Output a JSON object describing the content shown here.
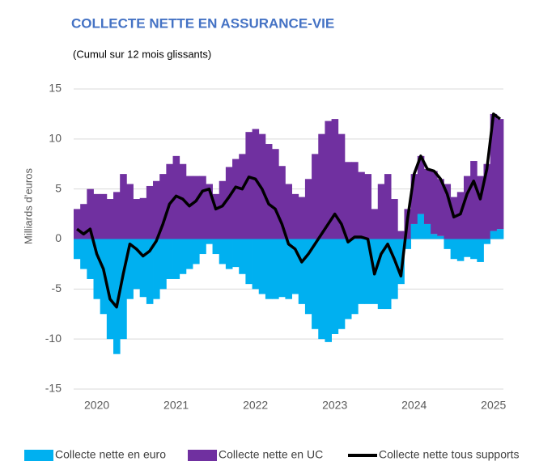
{
  "chart_data": {
    "type": "bar",
    "title": "COLLECTE NETTE EN ASSURANCE-VIE",
    "subtitle": "(Cumul sur 12 mois glissants)",
    "y_label": "Milliards d’euros",
    "categories": [
      null,
      null,
      null,
      "2020",
      null,
      null,
      null,
      null,
      null,
      null,
      null,
      null,
      null,
      null,
      null,
      "2021",
      null,
      null,
      null,
      null,
      null,
      null,
      null,
      null,
      null,
      null,
      null,
      "2022",
      null,
      null,
      null,
      null,
      null,
      null,
      null,
      null,
      null,
      null,
      null,
      "2023",
      null,
      null,
      null,
      null,
      null,
      null,
      null,
      null,
      null,
      null,
      null,
      "2024",
      null,
      null,
      null,
      null,
      null,
      null,
      null,
      null,
      null,
      null,
      null,
      "2025",
      null
    ],
    "series": [
      {
        "name": "Collecte nette en euro",
        "color": "#00b0f0",
        "values": [
          -2,
          -3,
          -4,
          -6,
          -7.5,
          -10,
          -11.5,
          -10,
          -6,
          -5,
          -5.8,
          -6.5,
          -6,
          -5,
          -4,
          -4,
          -3.5,
          -3,
          -2.5,
          -1.5,
          -0.5,
          -1.5,
          -2.5,
          -3,
          -2.8,
          -3.5,
          -4.5,
          -5,
          -5.5,
          -6,
          -6,
          -5.8,
          -6,
          -5.5,
          -6.5,
          -7.5,
          -9,
          -10,
          -10.3,
          -9.5,
          -9,
          -8,
          -7.5,
          -6.5,
          -6.5,
          -6.5,
          -7,
          -7,
          -6,
          -4.5,
          -1,
          1.5,
          2.5,
          1.5,
          0.5,
          0.3,
          -1,
          -2,
          -2.2,
          -1.8,
          -2,
          -2.3,
          -0.5,
          0.8,
          1
        ]
      },
      {
        "name": "Collecte nette en UC",
        "color": "#7030a0",
        "values": [
          3,
          3.5,
          5,
          4.5,
          4.5,
          4,
          4.7,
          6.5,
          5.5,
          4,
          4.1,
          5.3,
          5.8,
          6.5,
          7.5,
          8.3,
          7.5,
          6.3,
          6.3,
          6.3,
          5.5,
          4.5,
          5.8,
          7.2,
          8,
          8.5,
          10.7,
          11,
          10.5,
          9.5,
          9,
          7.3,
          5.5,
          4.5,
          4.2,
          6,
          8.5,
          10.5,
          11.8,
          12,
          10.5,
          7.7,
          7.7,
          6.7,
          6.5,
          3,
          5.5,
          6.5,
          4,
          0.8,
          3,
          5,
          5.8,
          5.5,
          6.3,
          5.7,
          5.5,
          4.2,
          4.7,
          6.3,
          7.8,
          6.3,
          7.5,
          11.7,
          11
        ]
      },
      {
        "name": "Collecte nette tous supports",
        "color": "#000000",
        "type": "line",
        "values": [
          1,
          0.5,
          1,
          -1.5,
          -3,
          -6,
          -6.8,
          -3.5,
          -0.5,
          -1,
          -1.7,
          -1.2,
          -0.2,
          1.5,
          3.5,
          4.3,
          4,
          3.3,
          3.8,
          4.8,
          5,
          3,
          3.3,
          4.2,
          5.2,
          5,
          6.2,
          6,
          5,
          3.5,
          3,
          1.5,
          -0.5,
          -1,
          -2.3,
          -1.5,
          -0.5,
          0.5,
          1.5,
          2.5,
          1.5,
          -0.3,
          0.2,
          0.2,
          0,
          -3.5,
          -1.5,
          -0.5,
          -2,
          -3.7,
          2,
          6.5,
          8.3,
          7,
          6.8,
          6,
          4.5,
          2.2,
          2.5,
          4.5,
          5.8,
          4,
          7,
          12.5,
          12
        ]
      }
    ],
    "ylim": [
      -15,
      15
    ],
    "yticks": [
      -15,
      -10,
      -5,
      0,
      5,
      10,
      15
    ],
    "grid": true,
    "legend": "bottom"
  }
}
